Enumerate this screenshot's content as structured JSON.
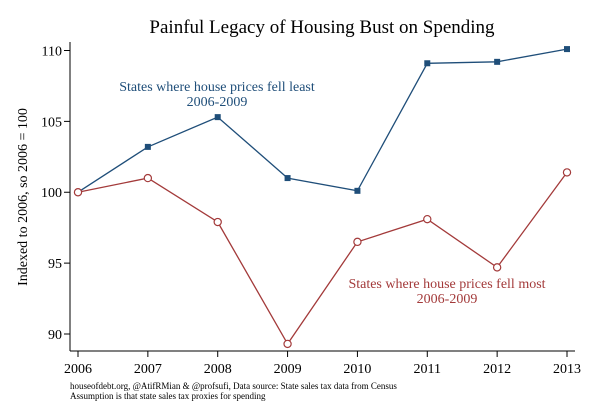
{
  "chart_data": {
    "type": "line",
    "title": "Painful Legacy of Housing Bust on Spending",
    "xlabel": "",
    "ylabel": "Indexed to 2006, so 2006 = 100",
    "x": [
      2006,
      2007,
      2008,
      2009,
      2010,
      2011,
      2012,
      2013
    ],
    "xlim": [
      2006,
      2013
    ],
    "ylim": [
      88.8,
      110.6
    ],
    "yticks": [
      90,
      95,
      100,
      105,
      110
    ],
    "grid": false,
    "series": [
      {
        "name": "States where house prices fell least 2006-2009",
        "label_lines": [
          "States where house prices fell least",
          "2006-2009"
        ],
        "color": "#1f4e79",
        "marker": "filled-square",
        "values": [
          100,
          103.2,
          105.3,
          101.0,
          100.1,
          109.1,
          109.2,
          110.1
        ]
      },
      {
        "name": "States where house prices fell most 2006-2009",
        "label_lines": [
          "States where house prices fell most",
          "2006-2009"
        ],
        "color": "#a33a3a",
        "marker": "hollow-circle",
        "values": [
          100,
          101.0,
          97.9,
          89.3,
          96.5,
          98.1,
          94.7,
          101.4
        ]
      }
    ],
    "footnotes": [
      "houseofdebt.org, @AtifRMian & @profsufi, Data source: State sales tax data from Census",
      "Assumption is that state sales tax proxies for spending"
    ]
  }
}
